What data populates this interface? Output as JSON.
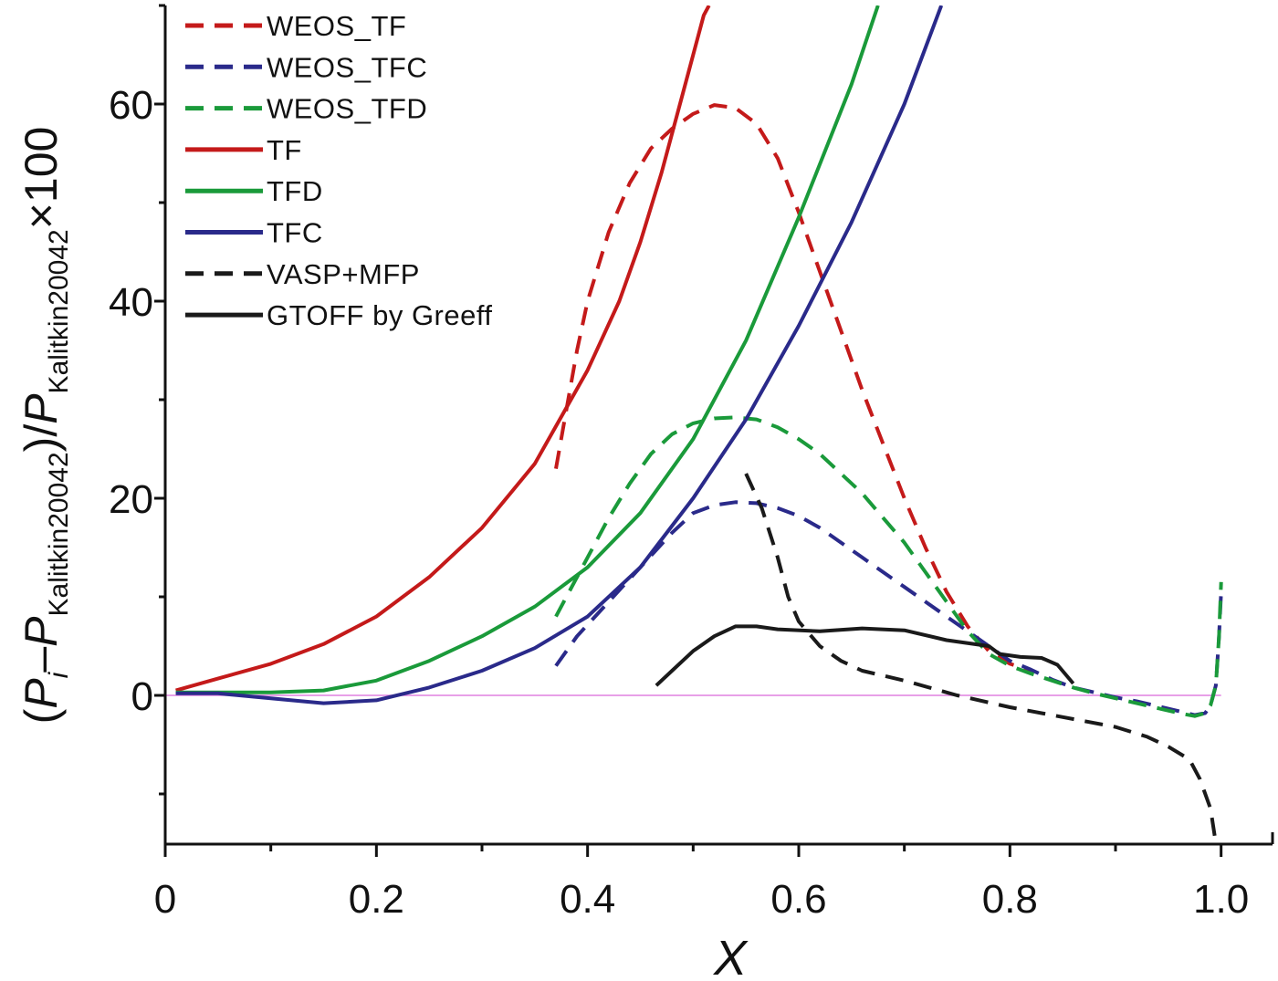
{
  "chart_data": {
    "type": "line",
    "xlabel": "X",
    "ylabel_parts": {
      "open": "(",
      "p": "P",
      "sub_i": "i",
      "minus": "–",
      "sub_ref": "Kalitkin20042",
      "close_slash": ")/",
      "times": "×100"
    },
    "xlim": [
      0,
      1.05
    ],
    "ylim": [
      -15,
      70
    ],
    "x_ticks": [
      0,
      0.2,
      0.4,
      0.6,
      0.8,
      1.0
    ],
    "x_tick_labels": [
      "0",
      "0.2",
      "0.4",
      "0.6",
      "0.8",
      "1.0"
    ],
    "y_ticks": [
      0,
      20,
      40,
      60
    ],
    "y_tick_labels": [
      "0",
      "20",
      "40",
      "60"
    ],
    "zero_line_color": "#e080e0",
    "legend_position": "top-left",
    "series": [
      {
        "name": "WEOS_TF",
        "color": "#c41a1a",
        "dash": "dashed",
        "points": [
          [
            0.37,
            23
          ],
          [
            0.38,
            29
          ],
          [
            0.39,
            35
          ],
          [
            0.4,
            40
          ],
          [
            0.42,
            47
          ],
          [
            0.44,
            52
          ],
          [
            0.46,
            55.5
          ],
          [
            0.48,
            57.5
          ],
          [
            0.5,
            59
          ],
          [
            0.52,
            59.9
          ],
          [
            0.54,
            59.6
          ],
          [
            0.56,
            58
          ],
          [
            0.58,
            54.5
          ],
          [
            0.6,
            49
          ],
          [
            0.62,
            43
          ],
          [
            0.64,
            37
          ],
          [
            0.66,
            31
          ],
          [
            0.68,
            25.5
          ],
          [
            0.7,
            20
          ],
          [
            0.72,
            15
          ],
          [
            0.74,
            10.5
          ],
          [
            0.76,
            7
          ],
          [
            0.78,
            4.5
          ],
          [
            0.8,
            3.2
          ],
          [
            0.82,
            2.5
          ]
        ]
      },
      {
        "name": "WEOS_TFC",
        "color": "#2a2a8a",
        "dash": "dashed",
        "points": [
          [
            0.37,
            3
          ],
          [
            0.39,
            6
          ],
          [
            0.42,
            9.5
          ],
          [
            0.45,
            13
          ],
          [
            0.48,
            16.5
          ],
          [
            0.5,
            18.5
          ],
          [
            0.52,
            19.3
          ],
          [
            0.54,
            19.6
          ],
          [
            0.56,
            19.5
          ],
          [
            0.58,
            19
          ],
          [
            0.6,
            18.2
          ],
          [
            0.62,
            17
          ],
          [
            0.64,
            15.5
          ],
          [
            0.66,
            14
          ],
          [
            0.68,
            12.5
          ],
          [
            0.7,
            11
          ],
          [
            0.72,
            9.5
          ],
          [
            0.74,
            8
          ],
          [
            0.76,
            6.5
          ],
          [
            0.78,
            5
          ],
          [
            0.8,
            3.5
          ],
          [
            0.82,
            2.6
          ],
          [
            0.84,
            1.6
          ],
          [
            0.86,
            0.8
          ],
          [
            0.88,
            0.3
          ],
          [
            0.9,
            -0.2
          ],
          [
            0.92,
            -0.6
          ],
          [
            0.94,
            -1.1
          ],
          [
            0.96,
            -1.6
          ],
          [
            0.975,
            -2
          ],
          [
            0.985,
            -1.8
          ],
          [
            0.99,
            -1
          ],
          [
            0.995,
            1
          ],
          [
            0.998,
            6
          ],
          [
            1.0,
            10.5
          ]
        ]
      },
      {
        "name": "WEOS_TFD",
        "color": "#1a9a3a",
        "dash": "dashed",
        "points": [
          [
            0.37,
            8
          ],
          [
            0.38,
            10
          ],
          [
            0.4,
            14
          ],
          [
            0.42,
            18
          ],
          [
            0.44,
            21.5
          ],
          [
            0.46,
            24.5
          ],
          [
            0.48,
            26.5
          ],
          [
            0.5,
            27.6
          ],
          [
            0.52,
            28.1
          ],
          [
            0.54,
            28.2
          ],
          [
            0.56,
            28
          ],
          [
            0.58,
            27.2
          ],
          [
            0.6,
            26
          ],
          [
            0.62,
            24.5
          ],
          [
            0.64,
            22.5
          ],
          [
            0.66,
            20.5
          ],
          [
            0.68,
            18
          ],
          [
            0.7,
            15.5
          ],
          [
            0.72,
            12.5
          ],
          [
            0.74,
            9.5
          ],
          [
            0.76,
            6.5
          ],
          [
            0.78,
            4.2
          ],
          [
            0.8,
            3
          ],
          [
            0.82,
            2.2
          ],
          [
            0.84,
            1.5
          ],
          [
            0.86,
            0.8
          ],
          [
            0.88,
            0.2
          ],
          [
            0.9,
            -0.3
          ],
          [
            0.92,
            -0.8
          ],
          [
            0.94,
            -1.3
          ],
          [
            0.96,
            -1.8
          ],
          [
            0.975,
            -2.1
          ],
          [
            0.985,
            -1.8
          ],
          [
            0.99,
            -1
          ],
          [
            0.995,
            1
          ],
          [
            0.998,
            6
          ],
          [
            1.0,
            11.5
          ]
        ]
      },
      {
        "name": "TF",
        "color": "#c41a1a",
        "dash": "solid",
        "points": [
          [
            0.01,
            0.5
          ],
          [
            0.05,
            1.7
          ],
          [
            0.1,
            3.2
          ],
          [
            0.15,
            5.2
          ],
          [
            0.2,
            8
          ],
          [
            0.25,
            12
          ],
          [
            0.3,
            17
          ],
          [
            0.35,
            23.5
          ],
          [
            0.4,
            33
          ],
          [
            0.43,
            40
          ],
          [
            0.45,
            46
          ],
          [
            0.47,
            53
          ],
          [
            0.49,
            61
          ],
          [
            0.51,
            69
          ],
          [
            0.515,
            70
          ]
        ]
      },
      {
        "name": "TFD",
        "color": "#1a9a3a",
        "dash": "solid",
        "points": [
          [
            0.01,
            0.3
          ],
          [
            0.05,
            0.3
          ],
          [
            0.1,
            0.3
          ],
          [
            0.15,
            0.5
          ],
          [
            0.2,
            1.5
          ],
          [
            0.25,
            3.5
          ],
          [
            0.3,
            6
          ],
          [
            0.35,
            9
          ],
          [
            0.4,
            13
          ],
          [
            0.45,
            18.5
          ],
          [
            0.5,
            26
          ],
          [
            0.55,
            36
          ],
          [
            0.6,
            48.5
          ],
          [
            0.65,
            62
          ],
          [
            0.675,
            70
          ]
        ]
      },
      {
        "name": "TFC",
        "color": "#2a2a8a",
        "dash": "solid",
        "points": [
          [
            0.01,
            0.2
          ],
          [
            0.05,
            0.2
          ],
          [
            0.1,
            -0.3
          ],
          [
            0.15,
            -0.8
          ],
          [
            0.2,
            -0.5
          ],
          [
            0.25,
            0.8
          ],
          [
            0.3,
            2.5
          ],
          [
            0.35,
            4.8
          ],
          [
            0.4,
            8
          ],
          [
            0.45,
            13
          ],
          [
            0.5,
            20
          ],
          [
            0.55,
            28
          ],
          [
            0.6,
            37.5
          ],
          [
            0.65,
            48
          ],
          [
            0.7,
            60
          ],
          [
            0.735,
            70
          ]
        ]
      },
      {
        "name": "VASP+MFP",
        "color": "#1a1a1a",
        "dash": "dashed",
        "points": [
          [
            0.55,
            22.5
          ],
          [
            0.565,
            19
          ],
          [
            0.58,
            14
          ],
          [
            0.59,
            10
          ],
          [
            0.6,
            7.5
          ],
          [
            0.62,
            5
          ],
          [
            0.64,
            3.5
          ],
          [
            0.66,
            2.5
          ],
          [
            0.7,
            1.5
          ],
          [
            0.75,
            0
          ],
          [
            0.8,
            -1.2
          ],
          [
            0.85,
            -2.2
          ],
          [
            0.9,
            -3.2
          ],
          [
            0.93,
            -4.2
          ],
          [
            0.95,
            -5.2
          ],
          [
            0.97,
            -6.5
          ],
          [
            0.98,
            -8.5
          ],
          [
            0.99,
            -11.5
          ],
          [
            0.995,
            -15
          ]
        ]
      },
      {
        "name": "GTOFF by Greeff",
        "color": "#1a1a1a",
        "dash": "solid",
        "points": [
          [
            0.465,
            1
          ],
          [
            0.48,
            2.5
          ],
          [
            0.5,
            4.5
          ],
          [
            0.52,
            6
          ],
          [
            0.54,
            7
          ],
          [
            0.56,
            7
          ],
          [
            0.58,
            6.7
          ],
          [
            0.62,
            6.5
          ],
          [
            0.66,
            6.8
          ],
          [
            0.7,
            6.6
          ],
          [
            0.74,
            5.6
          ],
          [
            0.78,
            5
          ],
          [
            0.79,
            4.2
          ],
          [
            0.81,
            3.9
          ],
          [
            0.83,
            3.8
          ],
          [
            0.845,
            3.1
          ],
          [
            0.86,
            1.2
          ]
        ]
      }
    ]
  }
}
